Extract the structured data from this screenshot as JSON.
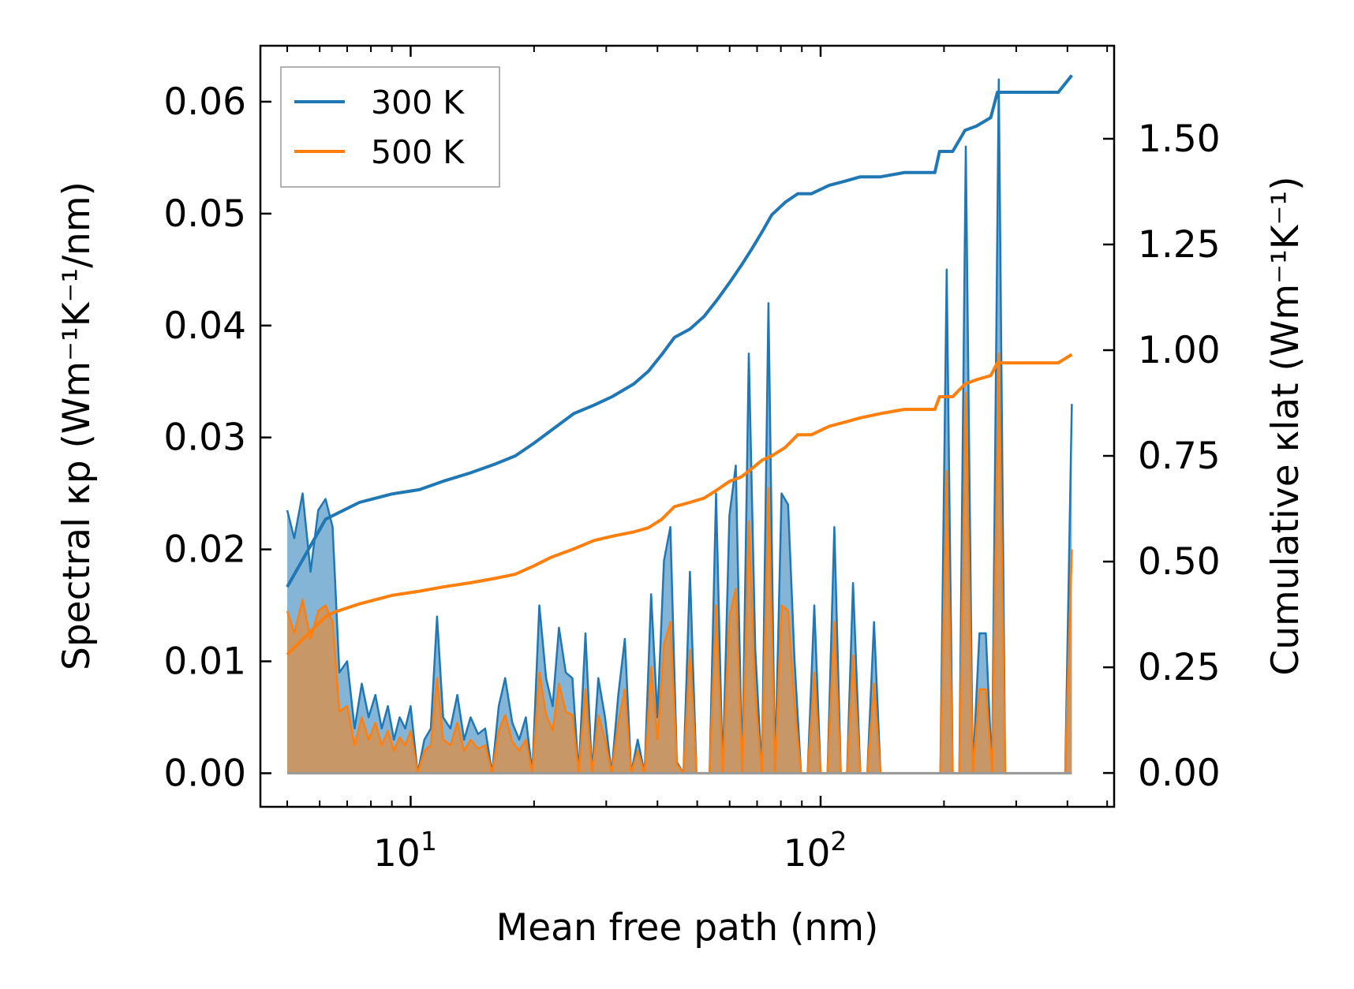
{
  "chart_data": {
    "type": "line",
    "xscale": "log",
    "xlabel": "Mean free path (nm)",
    "ylabel_left": "Spectral κp (Wm⁻¹K⁻¹/nm)",
    "ylabel_right": "Cumulative κlat (Wm⁻¹K⁻¹)",
    "xlim": [
      4.3,
      520
    ],
    "ylim_left": [
      -0.003,
      0.065
    ],
    "ylim_right": [
      -0.08,
      1.72
    ],
    "x_ticks": [
      {
        "value": 10,
        "base": "10",
        "exp": "1"
      },
      {
        "value": 100,
        "base": "10",
        "exp": "2"
      }
    ],
    "y_ticks_left": [
      "0.00",
      "0.01",
      "0.02",
      "0.03",
      "0.04",
      "0.05",
      "0.06"
    ],
    "y_ticks_right": [
      "0.00",
      "0.25",
      "0.50",
      "0.75",
      "1.00",
      "1.25",
      "1.50"
    ],
    "legend": {
      "position": "top-left",
      "entries": [
        "300 K",
        "500 K"
      ]
    },
    "colors": {
      "s300": "#1f77b4",
      "s500": "#ff7f0e"
    },
    "spectral": {
      "x": [
        5.0,
        5.2,
        5.45,
        5.7,
        5.95,
        6.2,
        6.45,
        6.7,
        7.0,
        7.3,
        7.6,
        7.9,
        8.2,
        8.5,
        8.8,
        9.1,
        9.4,
        9.7,
        10.0,
        10.4,
        10.8,
        11.2,
        11.6,
        12.0,
        12.5,
        13.0,
        13.5,
        14.0,
        14.6,
        15.2,
        15.8,
        16.4,
        17.0,
        17.7,
        18.4,
        19.1,
        19.8,
        20.6,
        21.4,
        22.2,
        23.0,
        23.9,
        24.8,
        25.7,
        26.7,
        27.7,
        28.7,
        29.8,
        30.9,
        32.1,
        33.3,
        34.5,
        35.8,
        37.2,
        38.6,
        40.0,
        41.5,
        43.0,
        44.6,
        46.3,
        48.0,
        49.8,
        51.7,
        53.6,
        55.6,
        57.7,
        59.9,
        62.1,
        64.4,
        66.8,
        69.3,
        71.9,
        74.6,
        77.4,
        80.3,
        83.3,
        86.4,
        89.6,
        93.0,
        96.5,
        100,
        104,
        108,
        112,
        116,
        120,
        125,
        130,
        135,
        140,
        145,
        150,
        156,
        162,
        168,
        175,
        182,
        189,
        196,
        203,
        210,
        218,
        226,
        235,
        244,
        253,
        262,
        272,
        282,
        293,
        304,
        316,
        328,
        340,
        353,
        366,
        380,
        395,
        410
      ],
      "s300": [
        0.0235,
        0.021,
        0.025,
        0.018,
        0.0235,
        0.0245,
        0.022,
        0.009,
        0.01,
        0.004,
        0.008,
        0.005,
        0.007,
        0.004,
        0.006,
        0.003,
        0.005,
        0.004,
        0.006,
        0.0,
        0.003,
        0.004,
        0.014,
        0.005,
        0.004,
        0.007,
        0.003,
        0.005,
        0.0035,
        0.004,
        0.0,
        0.006,
        0.0085,
        0.0045,
        0.003,
        0.005,
        0.0,
        0.015,
        0.0085,
        0.006,
        0.013,
        0.009,
        0.0085,
        0.0,
        0.0125,
        0.0,
        0.0085,
        0.005,
        0.0,
        0.007,
        0.012,
        0.0,
        0.003,
        0.0,
        0.016,
        0.005,
        0.019,
        0.022,
        0.001,
        0.0,
        0.018,
        0.0,
        0.0,
        0.0,
        0.025,
        0.0,
        0.023,
        0.0275,
        0.0,
        0.0375,
        0.011,
        0.0,
        0.042,
        0.0,
        0.025,
        0.024,
        0.01,
        0.0,
        0.0,
        0.015,
        0.0,
        0.0,
        0.022,
        0.0,
        0.0,
        0.017,
        0.0,
        0.0,
        0.0135,
        0.0,
        0.0,
        0.0,
        0.0,
        0.0,
        0.0,
        0.0,
        0.0,
        0.0,
        0.0,
        0.045,
        0.0,
        0.0,
        0.056,
        0.0,
        0.0125,
        0.0125,
        0.0,
        0.062,
        0.0,
        0.0,
        0.0,
        0.0,
        0.0,
        0.0,
        0.0,
        0.0,
        0.0,
        0.0,
        0.033
      ],
      "s500": [
        0.0145,
        0.0125,
        0.0155,
        0.012,
        0.0145,
        0.015,
        0.0135,
        0.0055,
        0.006,
        0.0025,
        0.005,
        0.003,
        0.0045,
        0.0025,
        0.0038,
        0.002,
        0.0032,
        0.0025,
        0.0038,
        0.0,
        0.002,
        0.0025,
        0.0085,
        0.003,
        0.0025,
        0.0045,
        0.002,
        0.003,
        0.0022,
        0.0025,
        0.0,
        0.0038,
        0.0052,
        0.0028,
        0.002,
        0.003,
        0.0,
        0.009,
        0.0052,
        0.0038,
        0.008,
        0.0055,
        0.0052,
        0.0,
        0.0075,
        0.0,
        0.0052,
        0.003,
        0.0,
        0.0045,
        0.0075,
        0.0,
        0.002,
        0.0,
        0.0095,
        0.003,
        0.0115,
        0.0135,
        0.0008,
        0.0,
        0.011,
        0.0,
        0.0,
        0.0,
        0.015,
        0.0,
        0.014,
        0.0165,
        0.0,
        0.0225,
        0.0068,
        0.0,
        0.0255,
        0.0,
        0.015,
        0.0145,
        0.006,
        0.0,
        0.0,
        0.009,
        0.0,
        0.0,
        0.0135,
        0.0,
        0.0,
        0.0105,
        0.0,
        0.0,
        0.008,
        0.0,
        0.0,
        0.0,
        0.0,
        0.0,
        0.0,
        0.0,
        0.0,
        0.0,
        0.0,
        0.027,
        0.0,
        0.0,
        0.034,
        0.0,
        0.0075,
        0.0075,
        0.0,
        0.0375,
        0.0,
        0.0,
        0.0,
        0.0,
        0.0,
        0.0,
        0.0,
        0.0,
        0.0,
        0.0,
        0.02
      ]
    },
    "cumulative": {
      "series": [
        {
          "name": "300 K",
          "x": [
            5.0,
            6.2,
            6.5,
            7.5,
            9.0,
            10.5,
            12.0,
            14.0,
            16.0,
            18.0,
            20.0,
            22.0,
            25.0,
            28.0,
            31.0,
            35.0,
            38.0,
            41.0,
            44.0,
            48.0,
            52.0,
            56.0,
            60.0,
            64.0,
            68.0,
            72.0,
            76.0,
            82.0,
            88.0,
            95.0,
            105.0,
            115.0,
            125.0,
            140.0,
            160.0,
            190.0,
            195.0,
            210.0,
            225.0,
            240.0,
            260.0,
            270.0,
            380.0,
            410.0
          ],
          "values": [
            0.44,
            0.6,
            0.61,
            0.64,
            0.66,
            0.67,
            0.69,
            0.71,
            0.73,
            0.75,
            0.78,
            0.81,
            0.85,
            0.87,
            0.89,
            0.92,
            0.95,
            0.99,
            1.03,
            1.05,
            1.08,
            1.12,
            1.16,
            1.2,
            1.24,
            1.28,
            1.32,
            1.35,
            1.37,
            1.37,
            1.39,
            1.4,
            1.41,
            1.41,
            1.42,
            1.42,
            1.47,
            1.47,
            1.52,
            1.53,
            1.55,
            1.61,
            1.61,
            1.65
          ]
        },
        {
          "name": "500 K",
          "x": [
            5.0,
            6.2,
            6.5,
            7.5,
            9.0,
            10.5,
            12.0,
            14.0,
            16.0,
            18.0,
            20.0,
            22.0,
            25.0,
            28.0,
            31.0,
            35.0,
            38.0,
            41.0,
            44.0,
            48.0,
            52.0,
            56.0,
            60.0,
            64.0,
            68.0,
            72.0,
            76.0,
            82.0,
            88.0,
            95.0,
            105.0,
            115.0,
            125.0,
            140.0,
            160.0,
            190.0,
            195.0,
            210.0,
            225.0,
            240.0,
            260.0,
            270.0,
            380.0,
            410.0
          ],
          "values": [
            0.28,
            0.37,
            0.38,
            0.4,
            0.42,
            0.43,
            0.44,
            0.45,
            0.46,
            0.47,
            0.49,
            0.51,
            0.53,
            0.55,
            0.56,
            0.57,
            0.58,
            0.6,
            0.63,
            0.64,
            0.65,
            0.67,
            0.69,
            0.7,
            0.72,
            0.74,
            0.75,
            0.77,
            0.8,
            0.8,
            0.82,
            0.83,
            0.84,
            0.85,
            0.86,
            0.86,
            0.89,
            0.89,
            0.92,
            0.93,
            0.94,
            0.97,
            0.97,
            0.99
          ]
        }
      ]
    }
  }
}
